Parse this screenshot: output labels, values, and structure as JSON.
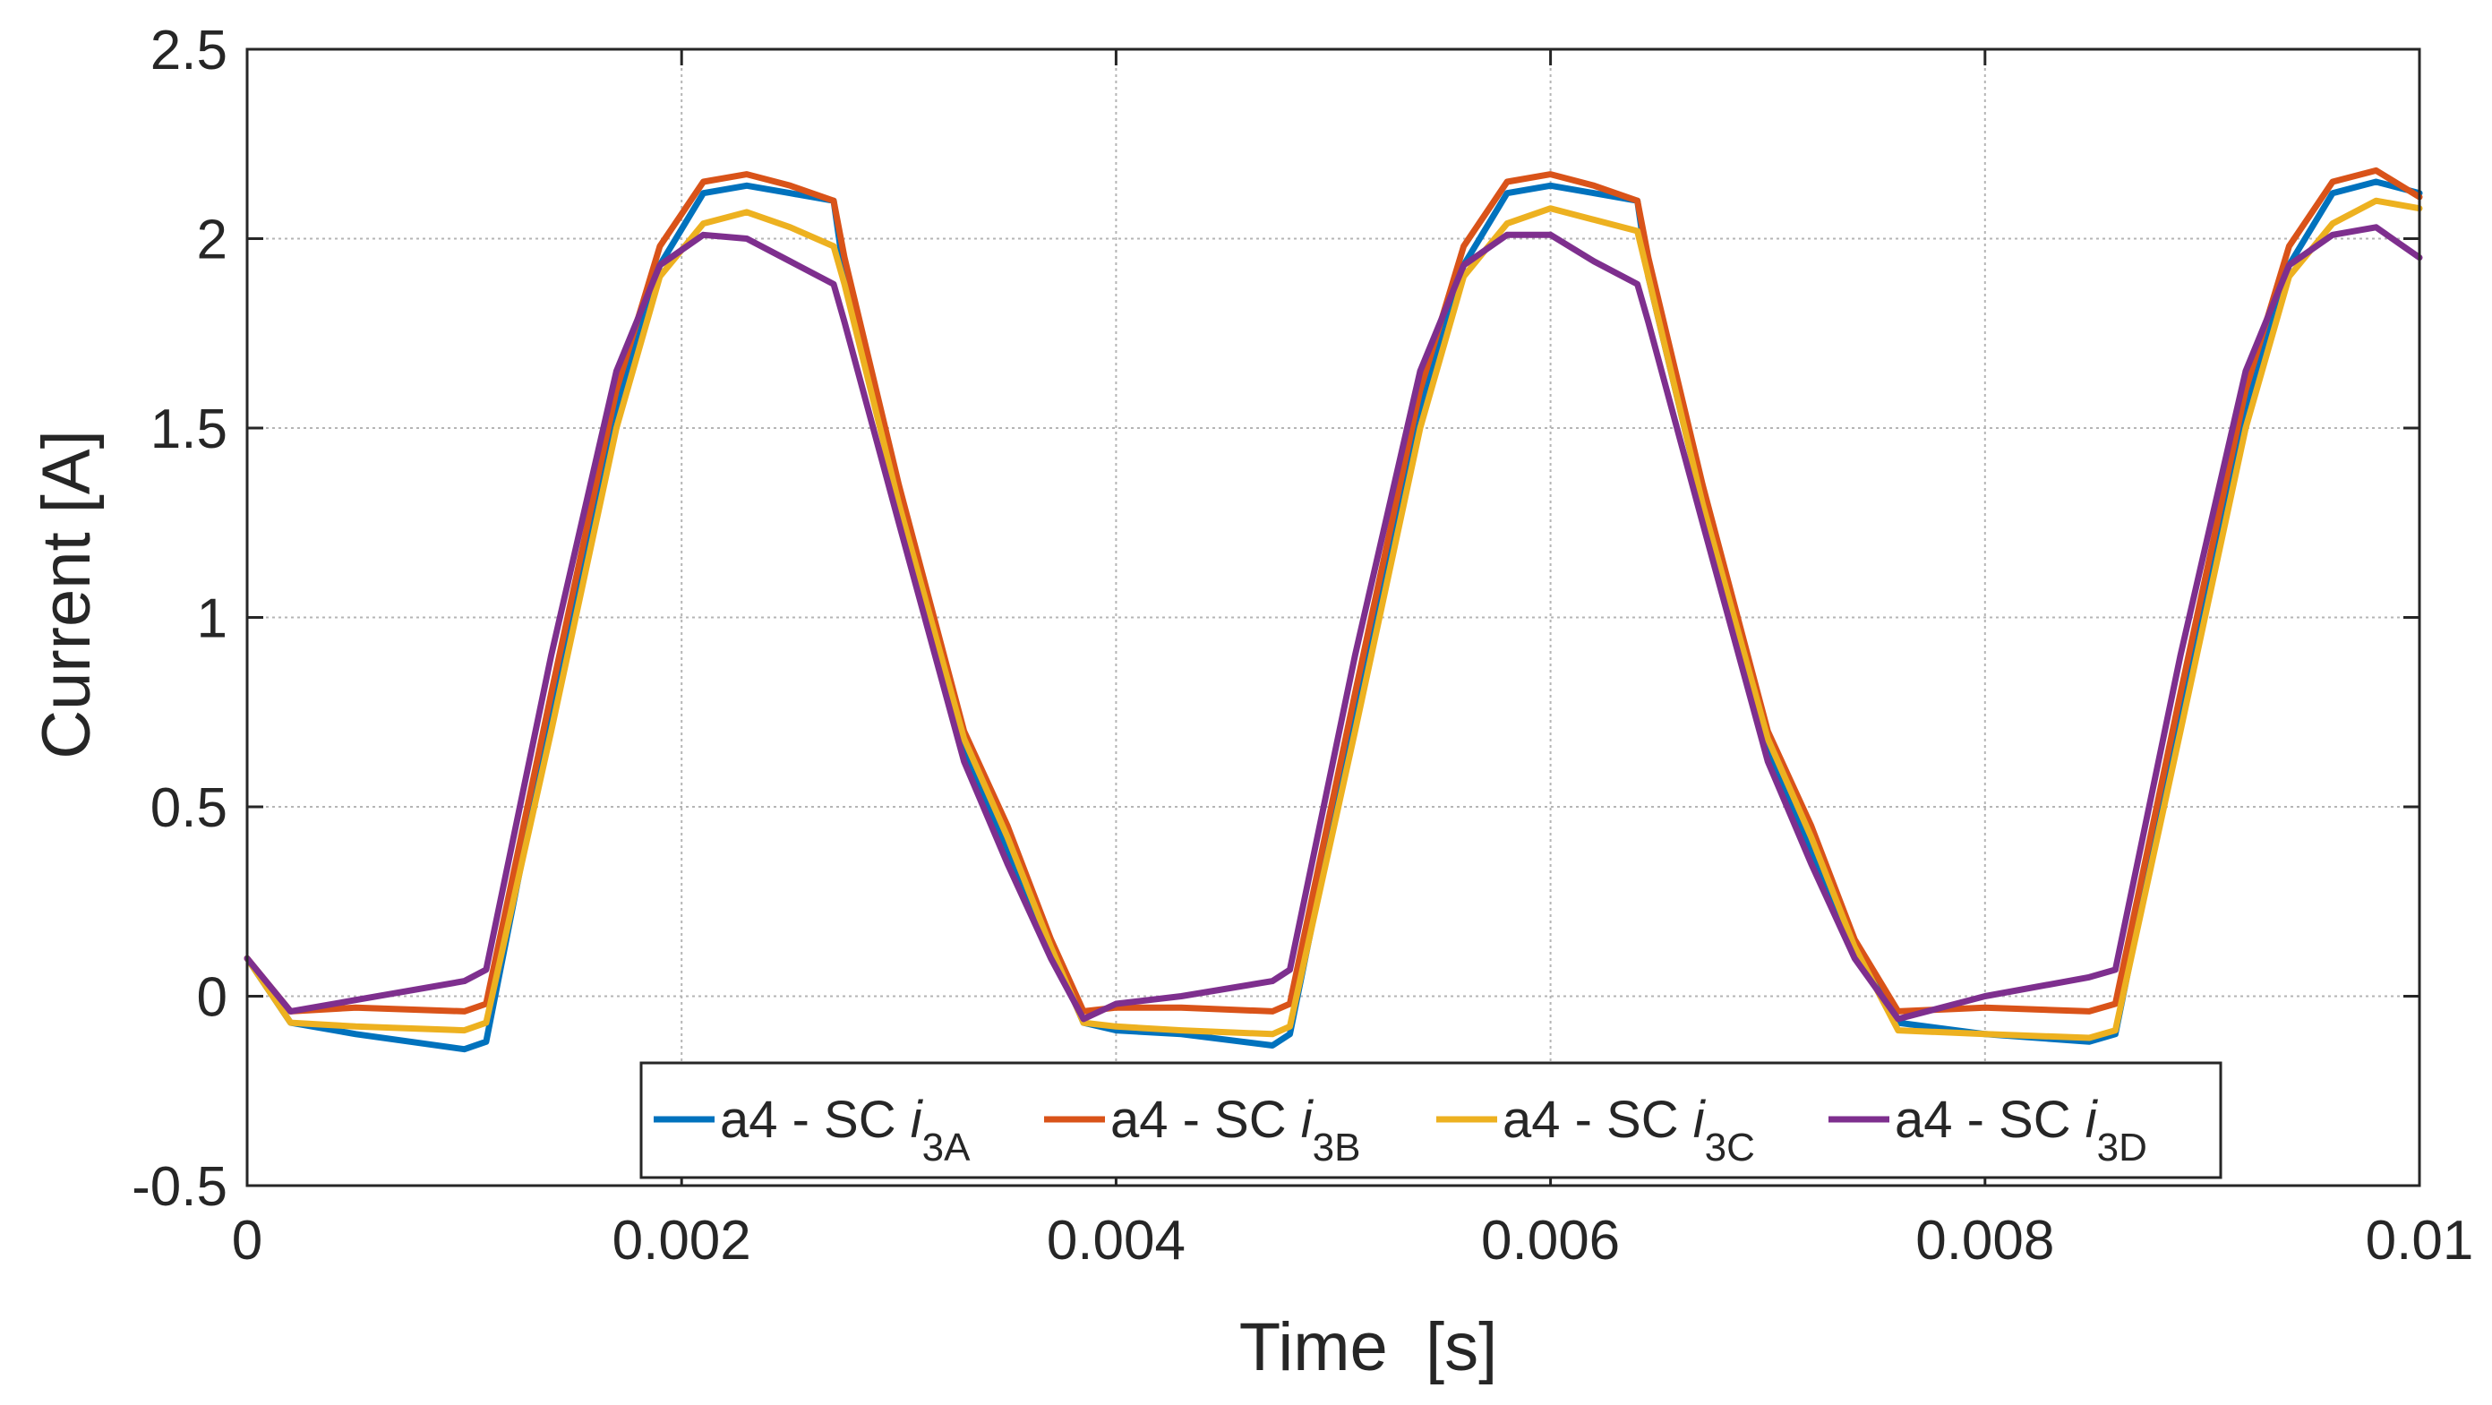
{
  "chart_data": {
    "type": "line",
    "title": "",
    "xlabel": "Time  [s]",
    "ylabel": "Current [A]",
    "xlim": [
      0,
      0.01
    ],
    "ylim": [
      -0.5,
      2.5
    ],
    "grid": true,
    "legend_position": "bottom-center",
    "legend_orientation": "horizontal",
    "x_ticks": [
      0,
      0.002,
      0.004,
      0.006,
      0.008,
      0.01
    ],
    "x_tick_labels": [
      "0",
      "0.002",
      "0.004",
      "0.006",
      "0.008",
      "0.01"
    ],
    "y_ticks": [
      -0.5,
      0,
      0.5,
      1,
      1.5,
      2,
      2.5
    ],
    "y_tick_labels": [
      "-0.5",
      "0",
      "0.5",
      "1",
      "1.5",
      "2",
      "2.5"
    ],
    "series": [
      {
        "name": "a4 - SC i3A",
        "label_main": "a4 - SC ",
        "label_italic": "i",
        "label_sub": "3A",
        "color": "#0072BD",
        "x": [
          0,
          0.0002,
          0.0005,
          0.001,
          0.0011,
          0.0014,
          0.0017,
          0.0019,
          0.0021,
          0.0023,
          0.0025,
          0.0027,
          0.00275,
          0.003,
          0.0033,
          0.0035,
          0.0037,
          0.00385,
          0.004,
          0.0043,
          0.00472,
          0.0048,
          0.0051,
          0.0054,
          0.0056,
          0.0058,
          0.006,
          0.0062,
          0.0064,
          0.00645,
          0.0067,
          0.007,
          0.0072,
          0.0074,
          0.0076,
          0.008,
          0.00848,
          0.0086,
          0.0089,
          0.0092,
          0.0094,
          0.0096,
          0.0098,
          0.01
        ],
        "y": [
          0.1,
          -0.07,
          -0.1,
          -0.14,
          -0.12,
          0.75,
          1.55,
          1.93,
          2.12,
          2.14,
          2.12,
          2.1,
          1.9,
          1.3,
          0.65,
          0.38,
          0.13,
          -0.07,
          -0.09,
          -0.1,
          -0.13,
          -0.1,
          0.75,
          1.55,
          1.93,
          2.12,
          2.14,
          2.12,
          2.1,
          1.9,
          1.3,
          0.65,
          0.38,
          0.13,
          -0.07,
          -0.1,
          -0.12,
          -0.1,
          0.75,
          1.55,
          1.93,
          2.12,
          2.15,
          2.12
        ]
      },
      {
        "name": "a4 - SC i3B",
        "label_main": "a4 - SC ",
        "label_italic": "i",
        "label_sub": "3B",
        "color": "#D95319",
        "x": [
          0,
          0.0002,
          0.0005,
          0.001,
          0.0011,
          0.0014,
          0.0017,
          0.0019,
          0.0021,
          0.0023,
          0.0025,
          0.0027,
          0.00275,
          0.003,
          0.0033,
          0.0035,
          0.0037,
          0.00385,
          0.004,
          0.0043,
          0.00472,
          0.0048,
          0.0051,
          0.0054,
          0.0056,
          0.0058,
          0.006,
          0.0062,
          0.0064,
          0.00645,
          0.0067,
          0.007,
          0.0072,
          0.0074,
          0.0076,
          0.008,
          0.00848,
          0.0086,
          0.0089,
          0.0092,
          0.0094,
          0.0096,
          0.0098,
          0.01
        ],
        "y": [
          0.1,
          -0.04,
          -0.03,
          -0.04,
          -0.02,
          0.8,
          1.6,
          1.98,
          2.15,
          2.17,
          2.14,
          2.1,
          1.95,
          1.35,
          0.7,
          0.45,
          0.15,
          -0.04,
          -0.03,
          -0.03,
          -0.04,
          -0.02,
          0.8,
          1.6,
          1.98,
          2.15,
          2.17,
          2.14,
          2.1,
          1.95,
          1.35,
          0.7,
          0.45,
          0.15,
          -0.04,
          -0.03,
          -0.04,
          -0.02,
          0.8,
          1.6,
          1.98,
          2.15,
          2.18,
          2.11
        ]
      },
      {
        "name": "a4 - SC i3C",
        "label_main": "a4 - SC ",
        "label_italic": "i",
        "label_sub": "3C",
        "color": "#EDB120",
        "x": [
          0,
          0.0002,
          0.0005,
          0.001,
          0.0011,
          0.0014,
          0.0017,
          0.0019,
          0.0021,
          0.0023,
          0.0025,
          0.0027,
          0.00275,
          0.003,
          0.0033,
          0.0035,
          0.0037,
          0.00385,
          0.004,
          0.0043,
          0.00472,
          0.0048,
          0.0051,
          0.0054,
          0.0056,
          0.0058,
          0.006,
          0.0062,
          0.0064,
          0.00645,
          0.0067,
          0.007,
          0.0072,
          0.0074,
          0.0076,
          0.008,
          0.00848,
          0.0086,
          0.0089,
          0.0092,
          0.0094,
          0.0096,
          0.0098,
          0.01
        ],
        "y": [
          0.1,
          -0.07,
          -0.08,
          -0.09,
          -0.07,
          0.7,
          1.5,
          1.9,
          2.04,
          2.07,
          2.03,
          1.98,
          1.88,
          1.3,
          0.68,
          0.42,
          0.13,
          -0.07,
          -0.08,
          -0.09,
          -0.1,
          -0.08,
          0.7,
          1.5,
          1.9,
          2.04,
          2.08,
          2.05,
          2.02,
          1.9,
          1.3,
          0.68,
          0.42,
          0.13,
          -0.09,
          -0.1,
          -0.11,
          -0.09,
          0.7,
          1.5,
          1.9,
          2.04,
          2.1,
          2.08
        ]
      },
      {
        "name": "a4 - SC i3D",
        "label_main": "a4 - SC ",
        "label_italic": "i",
        "label_sub": "3D",
        "color": "#7E2F8E",
        "x": [
          0,
          0.0002,
          0.0005,
          0.001,
          0.0011,
          0.0014,
          0.0017,
          0.0019,
          0.0021,
          0.0023,
          0.0025,
          0.0027,
          0.00275,
          0.003,
          0.0033,
          0.0035,
          0.0037,
          0.00385,
          0.004,
          0.0043,
          0.00472,
          0.0048,
          0.0051,
          0.0054,
          0.0056,
          0.0058,
          0.006,
          0.0062,
          0.0064,
          0.00645,
          0.0067,
          0.007,
          0.0072,
          0.0074,
          0.0076,
          0.008,
          0.00848,
          0.0086,
          0.0089,
          0.0092,
          0.0094,
          0.0096,
          0.0098,
          0.01
        ],
        "y": [
          0.1,
          -0.04,
          -0.01,
          0.04,
          0.07,
          0.9,
          1.65,
          1.93,
          2.01,
          2.0,
          1.94,
          1.88,
          1.78,
          1.25,
          0.62,
          0.35,
          0.1,
          -0.06,
          -0.02,
          0.0,
          0.04,
          0.07,
          0.9,
          1.65,
          1.93,
          2.01,
          2.01,
          1.94,
          1.88,
          1.78,
          1.25,
          0.62,
          0.35,
          0.1,
          -0.06,
          0.0,
          0.05,
          0.07,
          0.9,
          1.65,
          1.93,
          2.01,
          2.03,
          1.95
        ]
      }
    ]
  }
}
